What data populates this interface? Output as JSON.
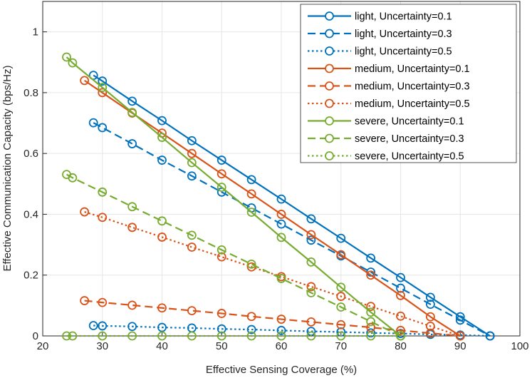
{
  "colors": {
    "light": "#0072BD",
    "medium": "#D95319",
    "severe": "#77AC30",
    "grid": "#e6e6e6",
    "axis": "#262626"
  },
  "chart_data": {
    "type": "line",
    "title": "",
    "xlabel": "Effective Sensing Coverage (%)",
    "ylabel": "Effective Communication Capacity (bps/Hz)",
    "xlim": [
      20,
      100
    ],
    "ylim": [
      0,
      1.1
    ],
    "xticks": [
      "20",
      "30",
      "40",
      "50",
      "60",
      "70",
      "80",
      "90",
      "100"
    ],
    "yticks": [
      "0",
      "0.2",
      "0.4",
      "0.6",
      "0.8",
      "1"
    ],
    "grid": true,
    "legend_position": "top-right",
    "series": [
      {
        "name": "light, Uncertainty=0.1",
        "color": "light",
        "dash": "solid",
        "x": [
          28.5,
          30,
          35,
          40,
          45,
          50,
          55,
          60,
          65,
          70,
          75,
          80,
          85,
          90,
          95
        ],
        "y": [
          0.857,
          0.838,
          0.772,
          0.708,
          0.642,
          0.578,
          0.514,
          0.45,
          0.385,
          0.321,
          0.256,
          0.192,
          0.127,
          0.063,
          0
        ]
      },
      {
        "name": "light, Uncertainty=0.3",
        "color": "light",
        "dash": "dashed",
        "x": [
          28.5,
          30,
          35,
          40,
          45,
          50,
          55,
          60,
          65,
          70,
          75,
          80,
          85,
          90,
          95
        ],
        "y": [
          0.701,
          0.685,
          0.632,
          0.578,
          0.526,
          0.473,
          0.421,
          0.368,
          0.315,
          0.263,
          0.21,
          0.157,
          0.104,
          0.052,
          0
        ]
      },
      {
        "name": "light, Uncertainty=0.5",
        "color": "light",
        "dash": "dotted",
        "x": [
          28.5,
          30,
          35,
          40,
          45,
          50,
          55,
          60,
          65,
          70,
          75,
          80,
          85,
          90,
          95
        ],
        "y": [
          0.034,
          0.033,
          0.031,
          0.028,
          0.026,
          0.023,
          0.021,
          0.018,
          0.015,
          0.013,
          0.01,
          0.008,
          0.005,
          0.003,
          0
        ]
      },
      {
        "name": "medium, Uncertainty=0.1",
        "color": "medium",
        "dash": "solid",
        "x": [
          27,
          30,
          35,
          40,
          45,
          50,
          55,
          60,
          65,
          70,
          75,
          80,
          85,
          90
        ],
        "y": [
          0.84,
          0.8,
          0.733,
          0.667,
          0.6,
          0.533,
          0.467,
          0.4,
          0.333,
          0.267,
          0.2,
          0.133,
          0.063,
          0
        ]
      },
      {
        "name": "medium, Uncertainty=0.3",
        "color": "medium",
        "dash": "dashed",
        "x": [
          27,
          30,
          35,
          40,
          45,
          50,
          55,
          60,
          65,
          70,
          75,
          80,
          85,
          90
        ],
        "y": [
          0.116,
          0.11,
          0.101,
          0.092,
          0.083,
          0.074,
          0.064,
          0.055,
          0.046,
          0.037,
          0.028,
          0.018,
          0.009,
          0
        ]
      },
      {
        "name": "medium, Uncertainty=0.5",
        "color": "medium",
        "dash": "dotted",
        "x": [
          27,
          30,
          35,
          40,
          45,
          50,
          55,
          60,
          65,
          70,
          75,
          80,
          85,
          90
        ],
        "y": [
          0.408,
          0.39,
          0.357,
          0.325,
          0.292,
          0.26,
          0.227,
          0.195,
          0.162,
          0.13,
          0.097,
          0.065,
          0.032,
          0
        ]
      },
      {
        "name": "severe, Uncertainty=0.1",
        "color": "severe",
        "dash": "solid",
        "x": [
          24,
          25,
          30,
          35,
          40,
          45,
          50,
          55,
          60,
          65,
          70,
          75,
          80
        ],
        "y": [
          0.917,
          0.898,
          0.817,
          0.735,
          0.653,
          0.57,
          0.489,
          0.407,
          0.324,
          0.243,
          0.16,
          0.078,
          0
        ]
      },
      {
        "name": "severe, Uncertainty=0.3",
        "color": "severe",
        "dash": "dashed",
        "x": [
          24,
          25,
          30,
          35,
          40,
          45,
          50,
          55,
          60,
          65,
          70,
          75,
          80
        ],
        "y": [
          0.531,
          0.52,
          0.473,
          0.425,
          0.378,
          0.331,
          0.283,
          0.236,
          0.189,
          0.142,
          0.095,
          0.047,
          0
        ]
      },
      {
        "name": "severe, Uncertainty=0.5",
        "color": "severe",
        "dash": "dotted",
        "x": [
          24,
          25,
          30,
          35,
          40,
          45,
          50,
          55,
          60,
          65,
          70,
          75,
          80
        ],
        "y": [
          0,
          0,
          0,
          0,
          0,
          0,
          0,
          0,
          0,
          0,
          0,
          0,
          0
        ]
      }
    ]
  }
}
